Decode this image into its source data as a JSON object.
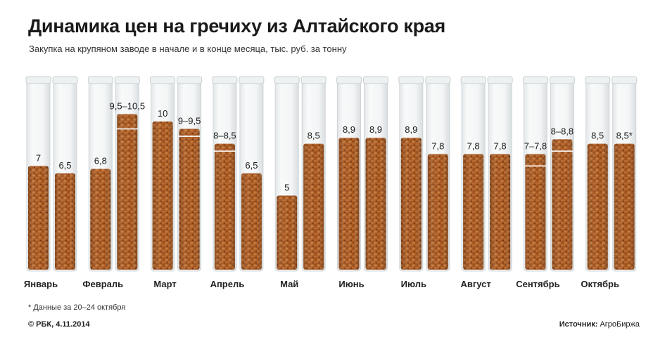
{
  "title": "Динамика цен на гречиху из Алтайского края",
  "subtitle": "Закупка на крупяном заводе в начале и в конце месяца, тыс. руб. за тонну",
  "footnote": "* Данные за 20–24 октября",
  "credit_label": "© РБК, 4.11.2014",
  "source_label": "Источник:",
  "source_value": "АгроБиржа",
  "colors": {
    "buckwheat": "#a85a22",
    "buckwheat_dark": "#7a3a12",
    "tube_glass": "#eef1f2"
  },
  "chart_data": {
    "type": "bar",
    "title": "Динамика цен на гречиху из Алтайского края",
    "subtitle": "Закупка на крупяном заводе в начале и в конце месяца, тыс. руб. за тонну",
    "categories": [
      "Январь",
      "Февраль",
      "Март",
      "Апрель",
      "Май",
      "Июнь",
      "Июль",
      "Август",
      "Сентябрь",
      "Октябрь"
    ],
    "ylim": [
      0,
      11
    ],
    "grid": false,
    "series": [
      {
        "values": [
          7,
          6.8,
          10,
          8.5,
          5,
          8.9,
          8.9,
          7.8,
          7.8,
          8.5
        ],
        "lows": [
          7,
          6.8,
          10,
          8,
          5,
          8.9,
          8.9,
          7.8,
          7,
          8.5
        ],
        "labels": [
          "7",
          "6,8",
          "10",
          "8–8,5",
          "5",
          "8,9",
          "8,9",
          "7,8",
          "7–7,8",
          "8,5"
        ]
      },
      {
        "values": [
          6.5,
          10.5,
          9.5,
          6.5,
          8.5,
          8.9,
          7.8,
          7.8,
          8.8,
          8.5
        ],
        "lows": [
          6.5,
          9.5,
          9,
          6.5,
          8.5,
          8.9,
          7.8,
          7.8,
          8,
          8.5
        ],
        "labels": [
          "6,5",
          "9,5–10,5",
          "9–9,5",
          "6,5",
          "8,5",
          "8,9",
          "7,8",
          "7,8",
          "8–8,8",
          "8,5*"
        ]
      }
    ]
  }
}
